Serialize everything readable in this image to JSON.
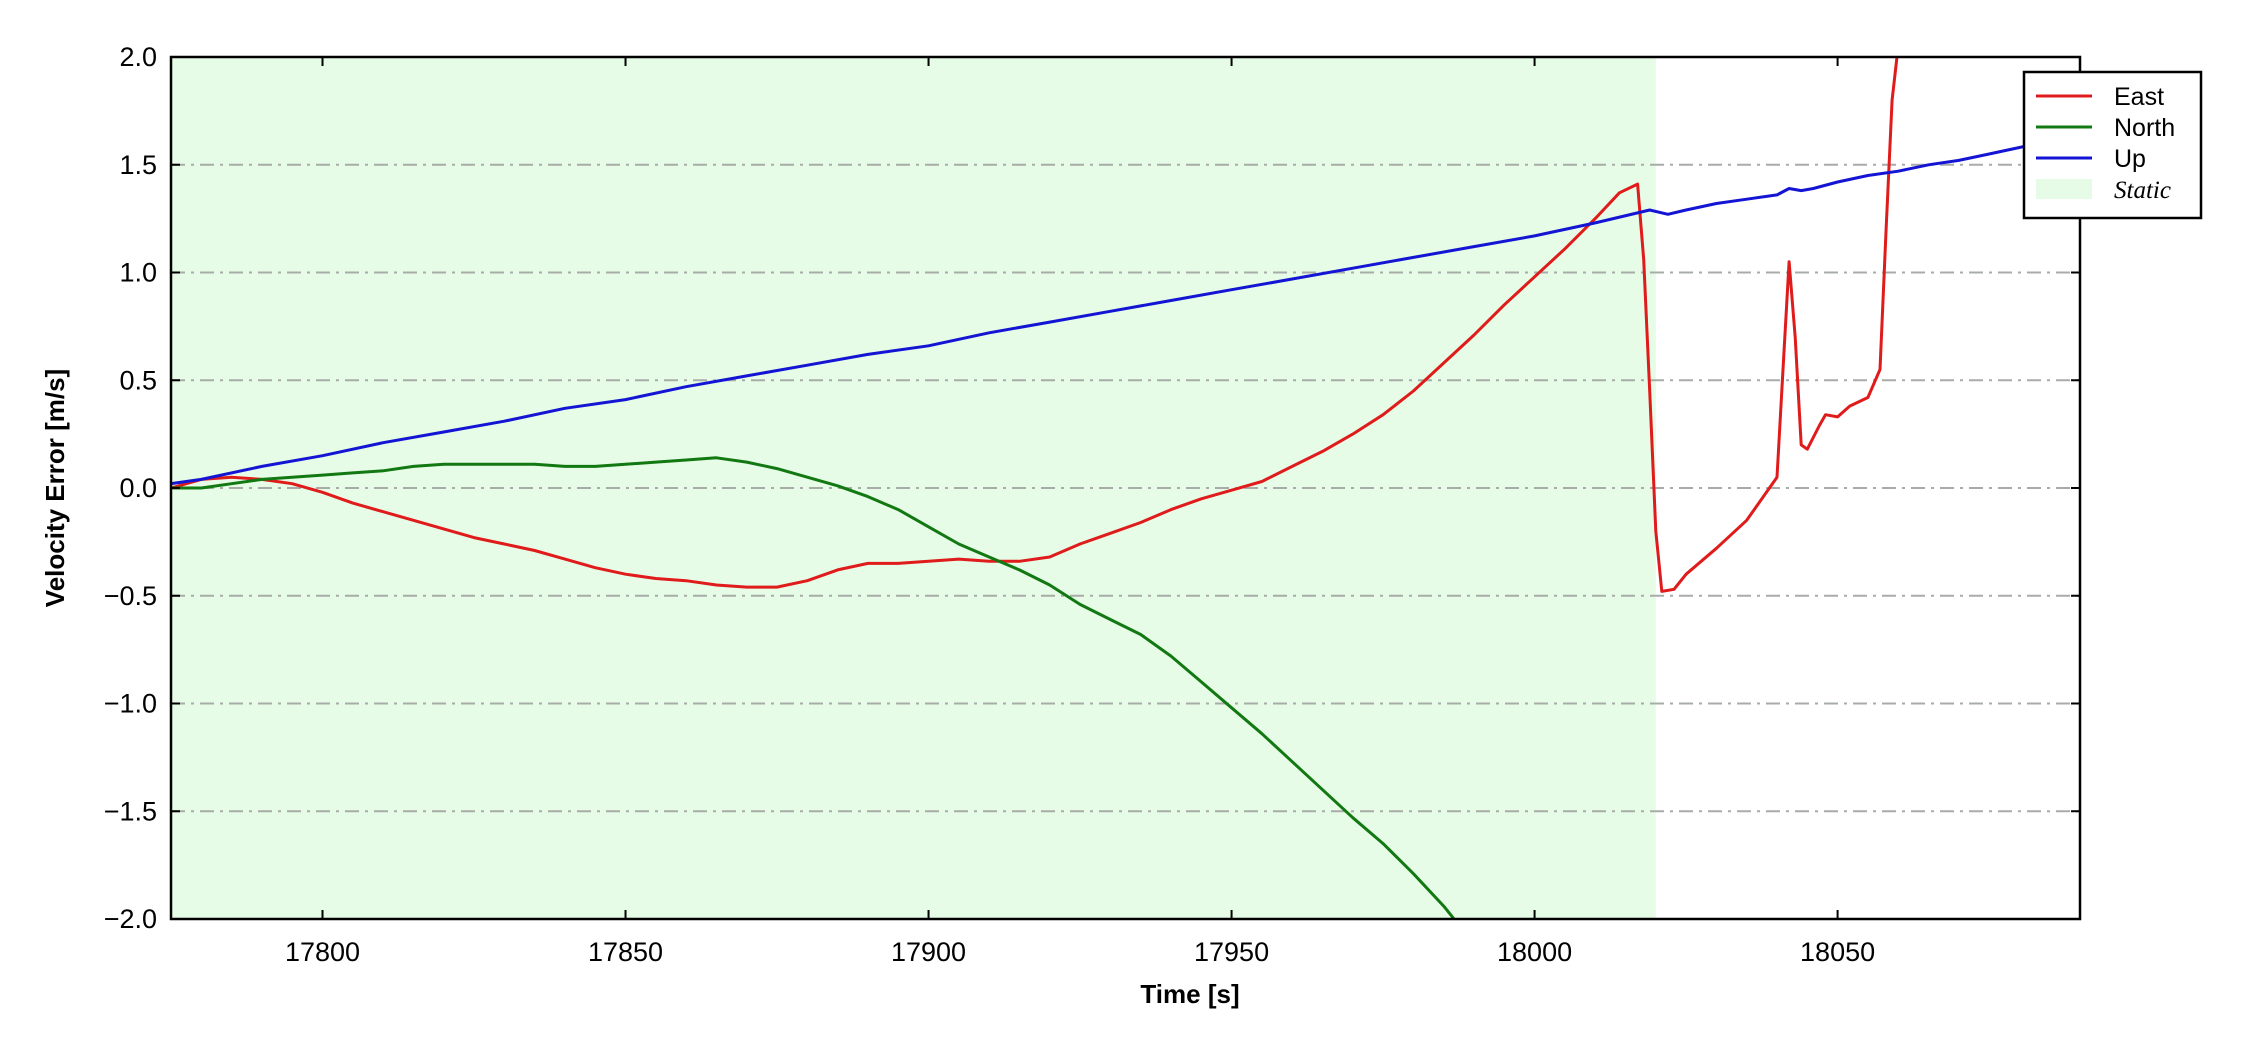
{
  "chart_data": {
    "type": "line",
    "xlabel": "Time [s]",
    "ylabel": "Velocity Error [m/s]",
    "xlim": [
      17775,
      18090
    ],
    "ylim": [
      -2.0,
      2.0
    ],
    "x_ticks": [
      17800,
      17850,
      17900,
      17950,
      18000,
      18050
    ],
    "x_tick_labels": [
      "17800",
      "17850",
      "17900",
      "17950",
      "18000",
      "18050"
    ],
    "y_ticks": [
      -2.0,
      -1.5,
      -1.0,
      -0.5,
      0.0,
      0.5,
      1.0,
      1.5,
      2.0
    ],
    "y_tick_labels": [
      "−2.0",
      "−1.5",
      "−1.0",
      "−0.5",
      "0.0",
      "0.5",
      "1.0",
      "1.5",
      "2.0"
    ],
    "grid": "horizontal dash-dot",
    "legend_position": "top-right",
    "shaded_region": {
      "name": "Static",
      "x_start": 17775,
      "x_end": 18020,
      "color": "#e6fce6"
    },
    "series": [
      {
        "name": "East",
        "color": "#e01b1b",
        "points": [
          [
            17775,
            0.0
          ],
          [
            17780,
            0.04
          ],
          [
            17785,
            0.05
          ],
          [
            17790,
            0.04
          ],
          [
            17795,
            0.02
          ],
          [
            17800,
            -0.02
          ],
          [
            17805,
            -0.07
          ],
          [
            17810,
            -0.11
          ],
          [
            17815,
            -0.15
          ],
          [
            17820,
            -0.19
          ],
          [
            17825,
            -0.23
          ],
          [
            17830,
            -0.26
          ],
          [
            17835,
            -0.29
          ],
          [
            17840,
            -0.33
          ],
          [
            17845,
            -0.37
          ],
          [
            17850,
            -0.4
          ],
          [
            17855,
            -0.42
          ],
          [
            17860,
            -0.43
          ],
          [
            17865,
            -0.45
          ],
          [
            17870,
            -0.46
          ],
          [
            17875,
            -0.46
          ],
          [
            17880,
            -0.43
          ],
          [
            17885,
            -0.38
          ],
          [
            17890,
            -0.35
          ],
          [
            17895,
            -0.35
          ],
          [
            17900,
            -0.34
          ],
          [
            17905,
            -0.33
          ],
          [
            17910,
            -0.34
          ],
          [
            17915,
            -0.34
          ],
          [
            17920,
            -0.32
          ],
          [
            17925,
            -0.26
          ],
          [
            17930,
            -0.21
          ],
          [
            17935,
            -0.16
          ],
          [
            17940,
            -0.1
          ],
          [
            17945,
            -0.05
          ],
          [
            17950,
            -0.01
          ],
          [
            17955,
            0.03
          ],
          [
            17960,
            0.1
          ],
          [
            17965,
            0.17
          ],
          [
            17970,
            0.25
          ],
          [
            17975,
            0.34
          ],
          [
            17980,
            0.45
          ],
          [
            17985,
            0.58
          ],
          [
            17990,
            0.71
          ],
          [
            17995,
            0.85
          ],
          [
            18000,
            0.98
          ],
          [
            18005,
            1.11
          ],
          [
            18010,
            1.25
          ],
          [
            18014,
            1.37
          ],
          [
            18017,
            1.41
          ],
          [
            18018,
            1.06
          ],
          [
            18019,
            0.45
          ],
          [
            18020,
            -0.2
          ],
          [
            18021,
            -0.48
          ],
          [
            18023,
            -0.47
          ],
          [
            18025,
            -0.4
          ],
          [
            18030,
            -0.28
          ],
          [
            18035,
            -0.15
          ],
          [
            18040,
            0.05
          ],
          [
            18041,
            0.55
          ],
          [
            18042,
            1.05
          ],
          [
            18043,
            0.7
          ],
          [
            18044,
            0.2
          ],
          [
            18045,
            0.18
          ],
          [
            18047,
            0.29
          ],
          [
            18048,
            0.34
          ],
          [
            18050,
            0.33
          ],
          [
            18052,
            0.38
          ],
          [
            18055,
            0.42
          ],
          [
            18057,
            0.55
          ],
          [
            18058,
            1.2
          ],
          [
            18059,
            1.8
          ],
          [
            18060,
            2.05
          ]
        ]
      },
      {
        "name": "North",
        "color": "#127812",
        "points": [
          [
            17775,
            0.0
          ],
          [
            17780,
            0.0
          ],
          [
            17785,
            0.02
          ],
          [
            17790,
            0.04
          ],
          [
            17795,
            0.05
          ],
          [
            17800,
            0.06
          ],
          [
            17805,
            0.07
          ],
          [
            17810,
            0.08
          ],
          [
            17815,
            0.1
          ],
          [
            17820,
            0.11
          ],
          [
            17825,
            0.11
          ],
          [
            17830,
            0.11
          ],
          [
            17835,
            0.11
          ],
          [
            17840,
            0.1
          ],
          [
            17845,
            0.1
          ],
          [
            17850,
            0.11
          ],
          [
            17855,
            0.12
          ],
          [
            17860,
            0.13
          ],
          [
            17865,
            0.14
          ],
          [
            17870,
            0.12
          ],
          [
            17875,
            0.09
          ],
          [
            17880,
            0.05
          ],
          [
            17885,
            0.01
          ],
          [
            17890,
            -0.04
          ],
          [
            17895,
            -0.1
          ],
          [
            17900,
            -0.18
          ],
          [
            17905,
            -0.26
          ],
          [
            17910,
            -0.32
          ],
          [
            17915,
            -0.38
          ],
          [
            17920,
            -0.45
          ],
          [
            17925,
            -0.54
          ],
          [
            17930,
            -0.61
          ],
          [
            17935,
            -0.68
          ],
          [
            17940,
            -0.78
          ],
          [
            17945,
            -0.9
          ],
          [
            17950,
            -1.02
          ],
          [
            17955,
            -1.14
          ],
          [
            17960,
            -1.27
          ],
          [
            17965,
            -1.4
          ],
          [
            17970,
            -1.53
          ],
          [
            17975,
            -1.65
          ],
          [
            17980,
            -1.79
          ],
          [
            17985,
            -1.94
          ],
          [
            17987,
            -2.01
          ]
        ]
      },
      {
        "name": "Up",
        "color": "#1414d4",
        "points": [
          [
            17775,
            0.02
          ],
          [
            17780,
            0.04
          ],
          [
            17790,
            0.1
          ],
          [
            17800,
            0.15
          ],
          [
            17810,
            0.21
          ],
          [
            17820,
            0.26
          ],
          [
            17830,
            0.31
          ],
          [
            17840,
            0.37
          ],
          [
            17850,
            0.41
          ],
          [
            17860,
            0.47
          ],
          [
            17870,
            0.52
          ],
          [
            17880,
            0.57
          ],
          [
            17890,
            0.62
          ],
          [
            17900,
            0.66
          ],
          [
            17910,
            0.72
          ],
          [
            17920,
            0.77
          ],
          [
            17930,
            0.82
          ],
          [
            17940,
            0.87
          ],
          [
            17950,
            0.92
          ],
          [
            17960,
            0.97
          ],
          [
            17970,
            1.02
          ],
          [
            17980,
            1.07
          ],
          [
            17990,
            1.12
          ],
          [
            18000,
            1.17
          ],
          [
            18010,
            1.23
          ],
          [
            18019,
            1.29
          ],
          [
            18022,
            1.27
          ],
          [
            18025,
            1.29
          ],
          [
            18030,
            1.32
          ],
          [
            18035,
            1.34
          ],
          [
            18040,
            1.36
          ],
          [
            18042,
            1.39
          ],
          [
            18044,
            1.38
          ],
          [
            18046,
            1.39
          ],
          [
            18050,
            1.42
          ],
          [
            18055,
            1.45
          ],
          [
            18060,
            1.47
          ],
          [
            18065,
            1.5
          ],
          [
            18070,
            1.52
          ],
          [
            18075,
            1.55
          ],
          [
            18080,
            1.58
          ],
          [
            18085,
            1.61
          ],
          [
            18090,
            1.63
          ]
        ]
      }
    ],
    "legend": [
      {
        "label": "East",
        "kind": "line",
        "color": "#e01b1b"
      },
      {
        "label": "North",
        "kind": "line",
        "color": "#127812"
      },
      {
        "label": "Up",
        "kind": "line",
        "color": "#1414d4"
      },
      {
        "label": "Static",
        "kind": "patch",
        "color": "#e6fce6"
      }
    ]
  }
}
